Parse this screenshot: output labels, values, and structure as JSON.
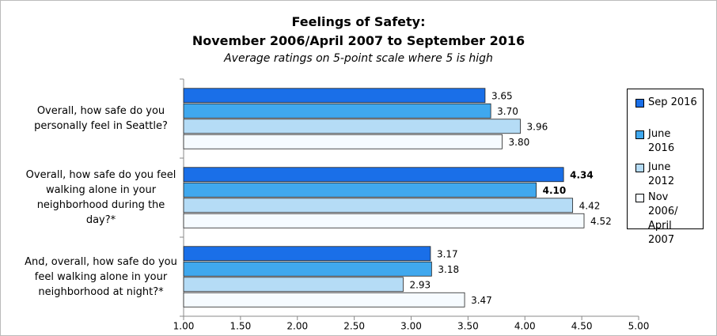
{
  "chart_data": {
    "type": "bar",
    "orientation": "horizontal",
    "title": [
      "Feelings of Safety:",
      "November 2006/April 2007 to September 2016"
    ],
    "subtitle": "Average ratings on 5-point scale where 5 is high",
    "categories": [
      "Overall, how safe do you personally feel in Seattle?",
      "Overall, how safe do you feel walking alone in your neighborhood during the day?*",
      "And, overall, how safe do you feel walking alone in your neighborhood at night?*"
    ],
    "series": [
      {
        "name": "Sep 2016",
        "color": "#1a6fe8",
        "values": [
          3.65,
          4.34,
          3.17
        ],
        "value_labels": [
          "3.65",
          "4.34",
          "3.17"
        ],
        "bold_value_labels": [
          false,
          true,
          false
        ]
      },
      {
        "name": "June 2016",
        "color": "#40a8ee",
        "values": [
          3.7,
          4.1,
          3.18
        ],
        "value_labels": [
          "3.70",
          "4.10",
          "3.18"
        ],
        "bold_value_labels": [
          false,
          true,
          false
        ]
      },
      {
        "name": "June 2012",
        "color": "#b5dcf6",
        "values": [
          3.96,
          4.42,
          2.93
        ],
        "value_labels": [
          "3.96",
          "4.42",
          "2.93"
        ]
      },
      {
        "name": "Nov 2006/ April 2007",
        "color": "#f6fbff",
        "values": [
          3.8,
          4.52,
          3.47
        ],
        "value_labels": [
          "3.80",
          "4.52",
          "3.47"
        ]
      }
    ],
    "xlim": [
      1,
      5
    ],
    "xticks": [
      {
        "value": 1,
        "label": "1.00"
      },
      {
        "value": 1.5,
        "label": "1.50"
      },
      {
        "value": 2,
        "label": "2.00"
      },
      {
        "value": 2.5,
        "label": "2.50"
      },
      {
        "value": 3,
        "label": "3.00"
      },
      {
        "value": 3.5,
        "label": "3.50"
      },
      {
        "value": 4,
        "label": "4.00"
      },
      {
        "value": 4.5,
        "label": "4.50"
      },
      {
        "value": 5,
        "label": "5.00"
      }
    ],
    "legend": "right"
  }
}
